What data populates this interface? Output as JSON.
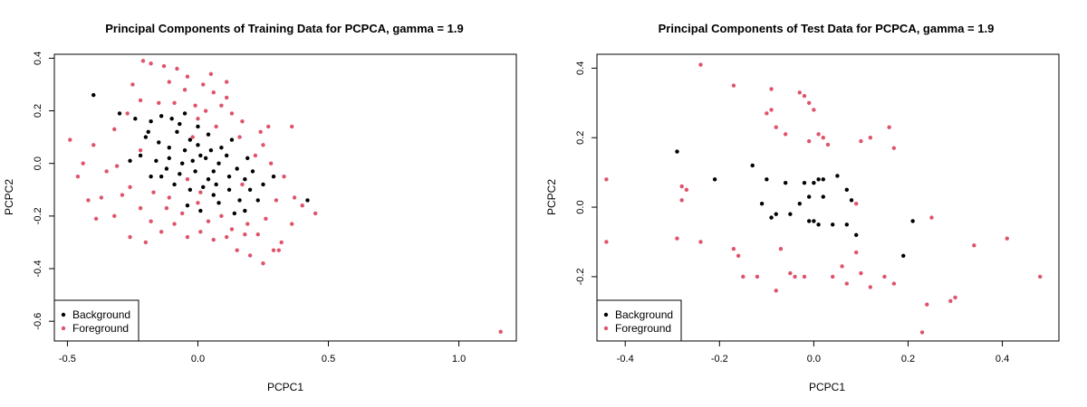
{
  "chart_data": [
    {
      "type": "scatter",
      "title": "Principal Components of Training Data for PCPCA, gamma = 1.9",
      "xlabel": "PCPC1",
      "ylabel": "PCPC2",
      "xlim": [
        -0.55,
        1.22
      ],
      "ylim": [
        -0.675,
        0.415
      ],
      "xticks": [
        -0.5,
        0.0,
        0.5,
        1.0
      ],
      "xtick_labels": [
        "-0.5",
        "0.0",
        "0.5",
        "1.0"
      ],
      "yticks": [
        -0.6,
        -0.4,
        -0.2,
        0.0,
        0.2,
        0.4
      ],
      "ytick_labels": [
        "-0.6",
        "-0.4",
        "-0.2",
        "0.0",
        "0.2",
        "0.4"
      ],
      "legend": {
        "position": "bottom-left",
        "entries": [
          "Background",
          "Foreground"
        ]
      },
      "series": [
        {
          "name": "Background",
          "color": "#000000",
          "points": [
            [
              -0.4,
              0.26
            ],
            [
              -0.3,
              0.19
            ],
            [
              -0.24,
              0.17
            ],
            [
              -0.18,
              0.16
            ],
            [
              -0.14,
              0.18
            ],
            [
              -0.1,
              0.17
            ],
            [
              -0.05,
              0.19
            ],
            [
              0.0,
              0.14
            ],
            [
              -0.03,
              0.09
            ],
            [
              -0.08,
              0.12
            ],
            [
              -0.19,
              0.12
            ],
            [
              -0.2,
              0.1
            ],
            [
              -0.15,
              0.08
            ],
            [
              -0.11,
              0.06
            ],
            [
              -0.05,
              0.05
            ],
            [
              0.0,
              0.07
            ],
            [
              0.05,
              0.05
            ],
            [
              0.09,
              0.06
            ],
            [
              0.11,
              0.03
            ],
            [
              0.08,
              0.0
            ],
            [
              0.03,
              0.02
            ],
            [
              -0.02,
              0.01
            ],
            [
              -0.06,
              0.0
            ],
            [
              -0.11,
              0.02
            ],
            [
              -0.16,
              0.01
            ],
            [
              -0.22,
              0.03
            ],
            [
              -0.26,
              0.01
            ],
            [
              -0.12,
              -0.02
            ],
            [
              -0.07,
              -0.04
            ],
            [
              -0.01,
              -0.03
            ],
            [
              0.04,
              -0.06
            ],
            [
              0.07,
              -0.08
            ],
            [
              0.12,
              -0.05
            ],
            [
              0.15,
              -0.02
            ],
            [
              0.18,
              -0.06
            ],
            [
              0.2,
              -0.1
            ],
            [
              0.16,
              -0.14
            ],
            [
              0.12,
              -0.1
            ],
            [
              0.06,
              -0.12
            ],
            [
              0.02,
              -0.09
            ],
            [
              -0.03,
              -0.1
            ],
            [
              -0.09,
              -0.08
            ],
            [
              -0.14,
              -0.05
            ],
            [
              -0.04,
              -0.16
            ],
            [
              0.01,
              -0.18
            ],
            [
              0.08,
              -0.15
            ],
            [
              0.14,
              -0.19
            ],
            [
              0.18,
              -0.18
            ],
            [
              0.23,
              -0.14
            ],
            [
              0.25,
              -0.08
            ],
            [
              0.29,
              -0.05
            ],
            [
              0.42,
              -0.14
            ],
            [
              0.21,
              -0.03
            ],
            [
              0.19,
              0.02
            ],
            [
              0.13,
              0.09
            ],
            [
              0.04,
              0.11
            ],
            [
              -0.07,
              0.15
            ],
            [
              0.01,
              0.03
            ],
            [
              0.06,
              -0.03
            ],
            [
              -0.18,
              -0.05
            ]
          ]
        },
        {
          "name": "Foreground",
          "color": "#DF536B",
          "points": [
            [
              -0.49,
              0.09
            ],
            [
              -0.4,
              0.07
            ],
            [
              -0.44,
              0.0
            ],
            [
              -0.46,
              -0.05
            ],
            [
              -0.42,
              -0.14
            ],
            [
              -0.37,
              -0.13
            ],
            [
              -0.35,
              -0.03
            ],
            [
              -0.31,
              -0.01
            ],
            [
              -0.29,
              -0.12
            ],
            [
              -0.32,
              -0.2
            ],
            [
              -0.26,
              -0.09
            ],
            [
              -0.22,
              -0.17
            ],
            [
              -0.18,
              -0.22
            ],
            [
              -0.14,
              -0.26
            ],
            [
              -0.09,
              -0.23
            ],
            [
              -0.04,
              -0.28
            ],
            [
              0.01,
              -0.26
            ],
            [
              0.06,
              -0.29
            ],
            [
              0.11,
              -0.28
            ],
            [
              0.15,
              -0.33
            ],
            [
              0.2,
              -0.35
            ],
            [
              0.25,
              -0.38
            ],
            [
              0.29,
              -0.33
            ],
            [
              0.32,
              -0.3
            ],
            [
              0.36,
              -0.23
            ],
            [
              0.4,
              -0.16
            ],
            [
              0.45,
              -0.19
            ],
            [
              0.37,
              -0.13
            ],
            [
              0.33,
              -0.05
            ],
            [
              0.28,
              0.0
            ],
            [
              0.25,
              0.07
            ],
            [
              0.22,
              0.03
            ],
            [
              0.27,
              0.14
            ],
            [
              0.17,
              0.16
            ],
            [
              0.13,
              0.19
            ],
            [
              0.09,
              0.22
            ],
            [
              0.06,
              0.27
            ],
            [
              0.11,
              0.31
            ],
            [
              0.02,
              0.3
            ],
            [
              -0.04,
              0.33
            ],
            [
              -0.08,
              0.36
            ],
            [
              -0.13,
              0.37
            ],
            [
              -0.18,
              0.38
            ],
            [
              -0.21,
              0.39
            ],
            [
              -0.11,
              0.31
            ],
            [
              -0.05,
              0.28
            ],
            [
              -0.09,
              0.23
            ],
            [
              -0.01,
              0.22
            ],
            [
              0.03,
              0.2
            ],
            [
              0.07,
              0.14
            ],
            [
              0.0,
              0.17
            ],
            [
              -0.15,
              0.23
            ],
            [
              -0.22,
              0.24
            ],
            [
              -0.27,
              0.19
            ],
            [
              -0.32,
              0.13
            ],
            [
              -0.22,
              0.05
            ],
            [
              -0.17,
              -0.11
            ],
            [
              -0.11,
              -0.13
            ],
            [
              -0.06,
              -0.19
            ],
            [
              0.0,
              -0.15
            ],
            [
              0.04,
              -0.22
            ],
            [
              0.09,
              -0.2
            ],
            [
              0.13,
              -0.25
            ],
            [
              0.19,
              -0.23
            ],
            [
              0.23,
              -0.27
            ],
            [
              0.31,
              -0.33
            ],
            [
              0.3,
              -0.14
            ],
            [
              0.17,
              -0.08
            ],
            [
              -0.04,
              -0.06
            ],
            [
              -0.26,
              -0.28
            ],
            [
              -0.39,
              -0.21
            ],
            [
              -0.2,
              -0.3
            ],
            [
              -0.12,
              -0.17
            ],
            [
              0.01,
              -0.11
            ],
            [
              0.16,
              0.1
            ],
            [
              0.24,
              0.12
            ],
            [
              0.11,
              0.25
            ],
            [
              0.18,
              -0.27
            ],
            [
              0.26,
              -0.21
            ],
            [
              0.36,
              0.14
            ],
            [
              1.16,
              -0.64
            ],
            [
              -0.25,
              0.3
            ],
            [
              0.05,
              0.34
            ],
            [
              -0.02,
              0.1
            ]
          ]
        }
      ]
    },
    {
      "type": "scatter",
      "title": "Principal Components of Test Data for PCPCA, gamma = 1.9",
      "xlabel": "PCPC1",
      "ylabel": "PCPC2",
      "xlim": [
        -0.46,
        0.52
      ],
      "ylim": [
        -0.385,
        0.44
      ],
      "xticks": [
        -0.4,
        -0.2,
        0.0,
        0.2,
        0.4
      ],
      "xtick_labels": [
        "-0.4",
        "-0.2",
        "0.0",
        "0.2",
        "0.4"
      ],
      "yticks": [
        -0.2,
        0.0,
        0.2,
        0.4
      ],
      "ytick_labels": [
        "-0.2",
        "0.0",
        "0.2",
        "0.4"
      ],
      "legend": {
        "position": "bottom-left",
        "entries": [
          "Background",
          "Foreground"
        ]
      },
      "series": [
        {
          "name": "Background",
          "color": "#000000",
          "points": [
            [
              -0.29,
              0.16
            ],
            [
              -0.21,
              0.08
            ],
            [
              -0.13,
              0.12
            ],
            [
              -0.1,
              0.08
            ],
            [
              -0.11,
              0.01
            ],
            [
              -0.09,
              -0.03
            ],
            [
              -0.08,
              -0.02
            ],
            [
              -0.06,
              0.07
            ],
            [
              -0.05,
              -0.02
            ],
            [
              -0.03,
              0.01
            ],
            [
              -0.02,
              0.07
            ],
            [
              -0.01,
              0.03
            ],
            [
              0.0,
              -0.04
            ],
            [
              0.0,
              0.07
            ],
            [
              0.01,
              0.08
            ],
            [
              0.01,
              -0.05
            ],
            [
              0.02,
              0.08
            ],
            [
              0.04,
              -0.05
            ],
            [
              0.05,
              0.09
            ],
            [
              0.07,
              0.05
            ],
            [
              0.07,
              -0.05
            ],
            [
              0.08,
              0.02
            ],
            [
              0.09,
              -0.08
            ],
            [
              0.19,
              -0.14
            ],
            [
              0.21,
              -0.04
            ],
            [
              0.02,
              0.03
            ],
            [
              -0.01,
              -0.04
            ]
          ]
        },
        {
          "name": "Foreground",
          "color": "#DF536B",
          "points": [
            [
              -0.44,
              0.08
            ],
            [
              -0.44,
              -0.1
            ],
            [
              -0.29,
              -0.09
            ],
            [
              -0.28,
              0.06
            ],
            [
              -0.27,
              0.05
            ],
            [
              -0.28,
              0.02
            ],
            [
              -0.24,
              0.41
            ],
            [
              -0.24,
              -0.1
            ],
            [
              -0.17,
              0.35
            ],
            [
              -0.17,
              -0.12
            ],
            [
              -0.16,
              -0.14
            ],
            [
              -0.15,
              -0.2
            ],
            [
              -0.09,
              0.34
            ],
            [
              -0.09,
              0.28
            ],
            [
              -0.08,
              0.23
            ],
            [
              -0.07,
              -0.12
            ],
            [
              -0.06,
              0.21
            ],
            [
              -0.05,
              -0.19
            ],
            [
              -0.04,
              -0.2
            ],
            [
              -0.03,
              0.33
            ],
            [
              -0.02,
              0.32
            ],
            [
              -0.02,
              -0.2
            ],
            [
              -0.01,
              0.3
            ],
            [
              -0.01,
              0.19
            ],
            [
              0.0,
              0.28
            ],
            [
              0.01,
              0.21
            ],
            [
              0.02,
              0.2
            ],
            [
              0.03,
              0.18
            ],
            [
              0.04,
              -0.2
            ],
            [
              0.06,
              -0.17
            ],
            [
              0.07,
              -0.22
            ],
            [
              0.09,
              -0.13
            ],
            [
              0.1,
              -0.19
            ],
            [
              0.1,
              0.19
            ],
            [
              0.12,
              0.2
            ],
            [
              0.12,
              -0.23
            ],
            [
              0.15,
              -0.2
            ],
            [
              0.16,
              0.23
            ],
            [
              0.17,
              0.17
            ],
            [
              0.17,
              -0.22
            ],
            [
              0.23,
              -0.36
            ],
            [
              0.24,
              -0.28
            ],
            [
              0.25,
              -0.03
            ],
            [
              0.29,
              -0.27
            ],
            [
              0.3,
              -0.26
            ],
            [
              0.34,
              -0.11
            ],
            [
              0.41,
              -0.09
            ],
            [
              0.48,
              -0.2
            ],
            [
              -0.08,
              -0.24
            ],
            [
              -0.12,
              -0.2
            ],
            [
              -0.1,
              0.27
            ],
            [
              0.09,
              0.01
            ]
          ]
        }
      ]
    }
  ]
}
